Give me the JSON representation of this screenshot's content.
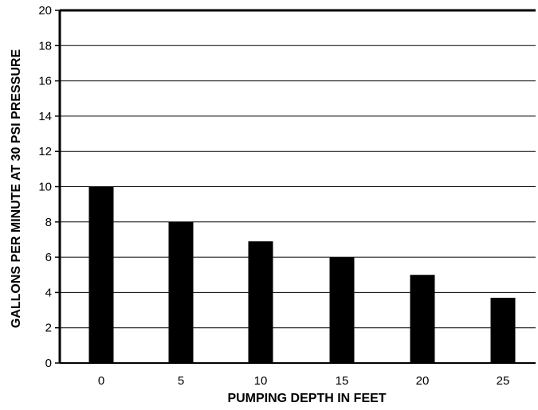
{
  "chart_data": {
    "type": "bar",
    "title": "",
    "xlabel": "PUMPING DEPTH IN FEET",
    "ylabel": "GALLONS PER MINUTE AT 30 PSI PRESSURE",
    "categories": [
      "0",
      "5",
      "10",
      "15",
      "20",
      "25"
    ],
    "values": [
      10,
      8,
      6.9,
      6,
      5,
      3.7
    ],
    "ylim": [
      0,
      20
    ],
    "yticks": [
      0,
      2,
      4,
      6,
      8,
      10,
      12,
      14,
      16,
      18,
      20
    ],
    "grid": true,
    "legend": "none",
    "colors": {
      "bar": "#000000",
      "grid": "#000000",
      "frame": "#000000",
      "background": "#ffffff"
    }
  }
}
